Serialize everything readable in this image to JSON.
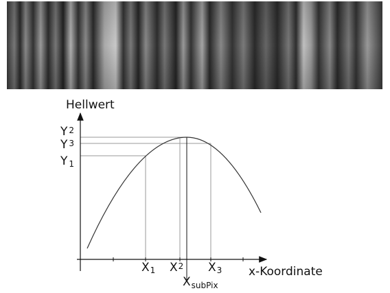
{
  "y_axis_label": "Hellwert",
  "x_axis_label": "x-Koordinate",
  "y_labels": [
    {
      "main": "Y",
      "sub": "2"
    },
    {
      "main": "Y",
      "sub": "3"
    },
    {
      "main": "Y",
      "sub": "1"
    }
  ],
  "x_labels": [
    {
      "main": "X",
      "sub": "1"
    },
    {
      "main": "X",
      "sub": "2"
    },
    {
      "main": "X",
      "sub": "3"
    }
  ],
  "subpix_label": {
    "main": "X",
    "sub": "subPix"
  }
}
